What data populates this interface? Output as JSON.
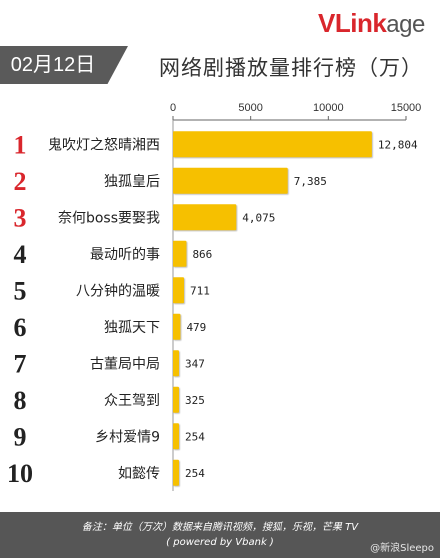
{
  "brand": {
    "logo_red": "VLink",
    "logo_grey": "age"
  },
  "header": {
    "date": "02月12日",
    "title": "网络剧播放量排行榜（万）"
  },
  "chart_data": {
    "type": "bar",
    "orientation": "horizontal",
    "title": "网络剧播放量排行榜（万）",
    "xlim": [
      0,
      15000
    ],
    "ticks": [
      "0",
      "5000",
      "10000",
      "15000"
    ],
    "ranks": [
      "1",
      "2",
      "3",
      "4",
      "5",
      "6",
      "7",
      "8",
      "9",
      "10"
    ],
    "categories": [
      "鬼吹灯之怒晴湘西",
      "独孤皇后",
      "奈何boss要娶我",
      "最动听的事",
      "八分钟的温暖",
      "独孤天下",
      "古董局中局",
      "众王驾到",
      "乡村爱情9",
      "如懿传"
    ],
    "values": [
      12804,
      7385,
      4075,
      866,
      711,
      479,
      347,
      325,
      254,
      254
    ],
    "value_labels": [
      "12,804",
      "7,385",
      "4,075",
      "866",
      "711",
      "479",
      "347",
      "325",
      "254",
      "254"
    ],
    "bar_color": "#f6c000",
    "top3_rank_color": "#d9262c",
    "rank_color": "#222222"
  },
  "footer": {
    "line1": "备注：单位（万次）数据来自腾讯视频，搜狐，乐视，芒果 TV",
    "line2": "( powered by Vbank )"
  },
  "watermark": "@新浪Sleepo"
}
